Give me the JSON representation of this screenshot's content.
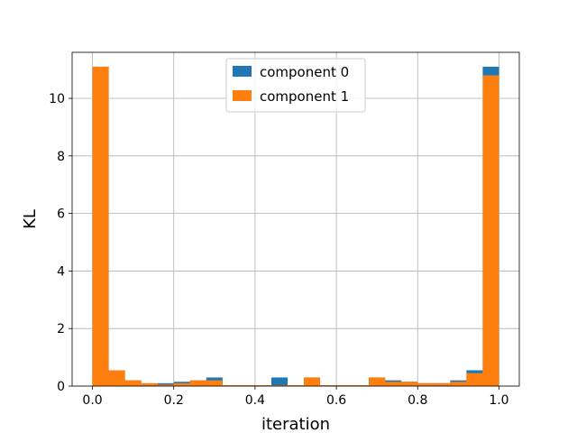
{
  "chart_data": {
    "type": "bar",
    "xlabel": "iteration",
    "ylabel": "KL",
    "xlim": [
      -0.05,
      1.05
    ],
    "ylim": [
      0,
      11.6
    ],
    "xticks": [
      0.0,
      0.2,
      0.4,
      0.6,
      0.8,
      1.0
    ],
    "xtick_labels": [
      "0.0",
      "0.2",
      "0.4",
      "0.6",
      "0.8",
      "1.0"
    ],
    "yticks": [
      0,
      2,
      4,
      6,
      8,
      10
    ],
    "ytick_labels": [
      "0",
      "2",
      "4",
      "6",
      "8",
      "10"
    ],
    "grid": true,
    "legend_position": "top-center",
    "bin_width": 0.04,
    "bin_starts": [
      0.0,
      0.04,
      0.08,
      0.12,
      0.16,
      0.2,
      0.24,
      0.28,
      0.32,
      0.36,
      0.4,
      0.44,
      0.48,
      0.52,
      0.56,
      0.6,
      0.64,
      0.68,
      0.72,
      0.76,
      0.8,
      0.84,
      0.88,
      0.92,
      0.96
    ],
    "series": [
      {
        "name": "component 0",
        "color": "#1f77b4",
        "values": [
          11.1,
          0.5,
          0.2,
          0.05,
          0.1,
          0.15,
          0.2,
          0.3,
          0.03,
          0.03,
          0.03,
          0.3,
          0.03,
          0.3,
          0.03,
          0.03,
          0.03,
          0.3,
          0.2,
          0.15,
          0.1,
          0.1,
          0.2,
          0.55,
          11.1
        ]
      },
      {
        "name": "component 1",
        "color": "#ff7f0e",
        "values": [
          11.1,
          0.55,
          0.2,
          0.1,
          0.05,
          0.1,
          0.2,
          0.2,
          0.03,
          0.03,
          0.03,
          0.03,
          0.03,
          0.3,
          0.03,
          0.03,
          0.03,
          0.3,
          0.15,
          0.15,
          0.1,
          0.1,
          0.15,
          0.45,
          10.8
        ]
      }
    ]
  }
}
